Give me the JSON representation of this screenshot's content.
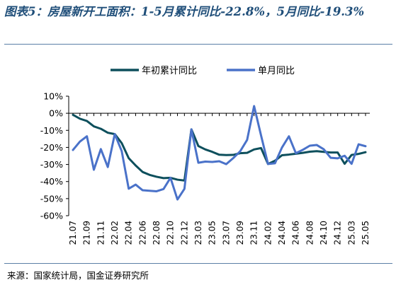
{
  "header": {
    "title": "图表5：房屋新开工面积：1-5月累计同比-22.8%，5月同比-19.3%"
  },
  "footer": {
    "source": "来源：国家统计局，国金证券研究所"
  },
  "colors": {
    "cumulative": "#0d4f5c",
    "monthly": "#4a72c9",
    "title": "#1f4e79",
    "rule": "#5b7fa6"
  },
  "chart_data": {
    "type": "line",
    "title": "",
    "xlabel": "",
    "ylabel": "",
    "ylim": [
      -60,
      10
    ],
    "yticks": [
      10,
      0,
      -10,
      -20,
      -30,
      -40,
      -50,
      -60
    ],
    "ytick_labels": [
      "10%",
      "0%",
      "-10%",
      "-20%",
      "-30%",
      "-40%",
      "-50%",
      "-60%"
    ],
    "grid": false,
    "legend": "top",
    "x": [
      "21.07",
      "21.08",
      "21.09",
      "21.10",
      "21.11",
      "21.12",
      "22.02",
      "22.03",
      "22.04",
      "22.05",
      "22.06",
      "22.07",
      "22.08",
      "22.09",
      "22.10",
      "22.11",
      "22.12",
      "23.02",
      "23.03",
      "23.04",
      "23.05",
      "23.06",
      "23.07",
      "23.08",
      "23.09",
      "23.10",
      "23.11",
      "23.12",
      "24.02",
      "24.03",
      "24.04",
      "24.05",
      "24.06",
      "24.07",
      "24.08",
      "24.09",
      "24.10",
      "24.11",
      "24.12",
      "25.02",
      "25.03",
      "25.04",
      "25.05"
    ],
    "xtick_labels": [
      "21.07",
      "21.09",
      "21.11",
      "22.02",
      "22.04",
      "22.06",
      "22.08",
      "22.10",
      "22.12",
      "23.03",
      "23.05",
      "23.07",
      "23.09",
      "23.11",
      "24.02",
      "24.04",
      "24.06",
      "24.08",
      "24.10",
      "24.12",
      "25.03",
      "25.05"
    ],
    "series": [
      {
        "name": "年初累计同比",
        "values": [
          -0.9,
          -3.2,
          -4.5,
          -7.7,
          -9.1,
          -11.4,
          -12.2,
          -17.5,
          -26.3,
          -30.6,
          -34.4,
          -36.1,
          -37.2,
          -38.0,
          -37.8,
          -38.9,
          -39.4,
          -9.4,
          -19.2,
          -21.2,
          -22.6,
          -24.3,
          -24.5,
          -24.4,
          -23.4,
          -23.2,
          -21.2,
          -20.4,
          -29.7,
          -27.8,
          -24.6,
          -24.2,
          -23.7,
          -23.2,
          -22.5,
          -22.2,
          -22.6,
          -23.0,
          -23.0,
          -29.6,
          -24.4,
          -23.8,
          -22.8
        ]
      },
      {
        "name": "单月同比",
        "values": [
          -21.5,
          -16.6,
          -13.5,
          -33.1,
          -21.0,
          -31.5,
          -12.2,
          -22.2,
          -44.2,
          -41.8,
          -45.1,
          -45.4,
          -45.7,
          -44.4,
          -37.8,
          -50.5,
          -44.3,
          -9.4,
          -29.0,
          -28.3,
          -28.5,
          -28.1,
          -29.8,
          -26.3,
          -22.3,
          -15.6,
          4.2,
          -13.0,
          -29.7,
          -29.3,
          -20.1,
          -13.5,
          -23.4,
          -21.4,
          -19.0,
          -18.6,
          -21.1,
          -26.1,
          -26.4,
          -24.9,
          -29.6,
          -18.2,
          -19.3
        ]
      }
    ]
  }
}
